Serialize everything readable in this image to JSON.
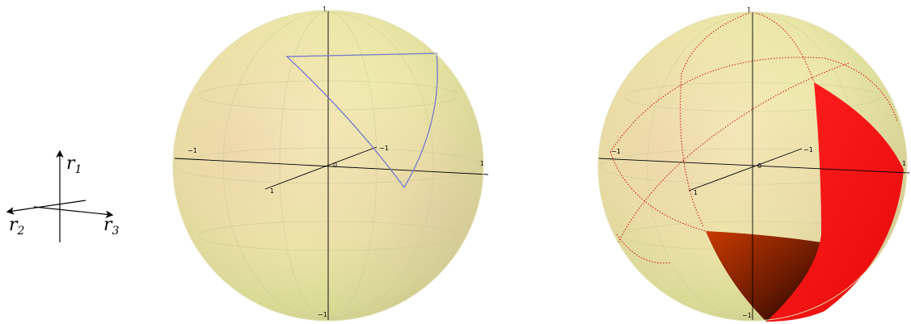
{
  "legend": {
    "r1": {
      "base": "r",
      "sub": "1"
    },
    "r2": {
      "base": "r",
      "sub": "2"
    },
    "r3": {
      "base": "r",
      "sub": "3"
    }
  },
  "ticks": {
    "pos": "1",
    "neg": "−1",
    "zero": "0"
  },
  "colors": {
    "sphere_light": "#f3efb4",
    "sphere_dark": "#c9d28a",
    "sphere_rim": "#d8b8a8",
    "curve": "#8a8ad0",
    "red_region": "#ff1a1a",
    "dark_region": "#3a0a00",
    "dotted_red": "#d01010"
  }
}
